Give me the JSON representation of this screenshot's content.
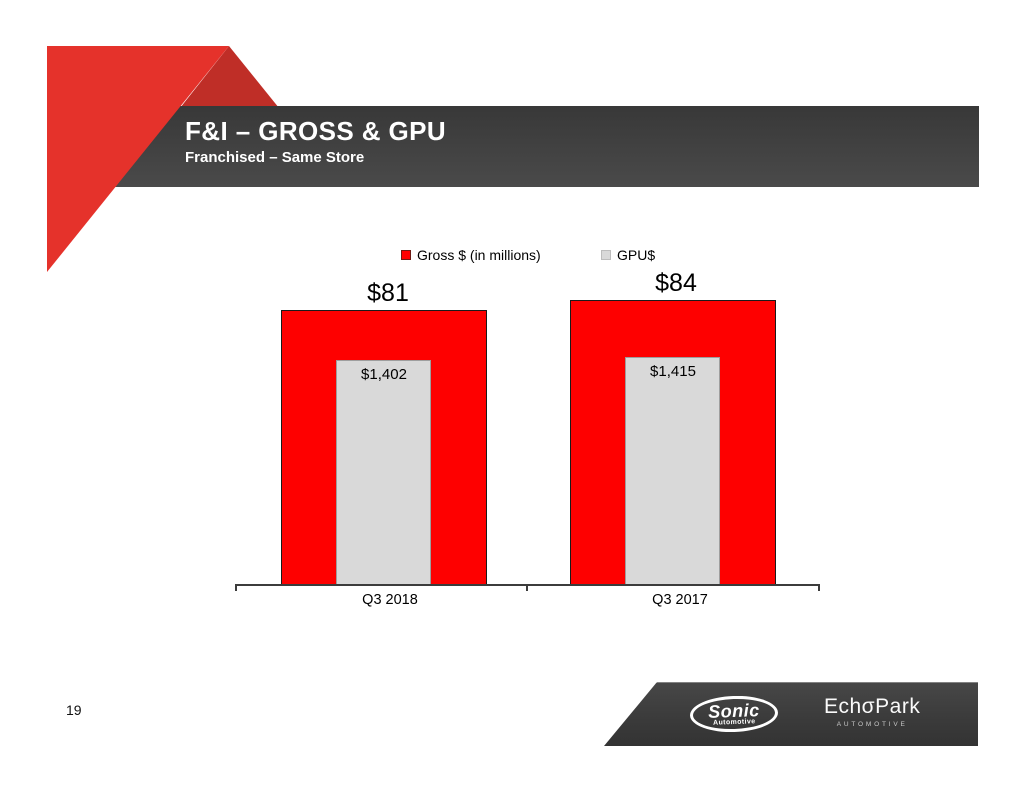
{
  "page_number": "19",
  "header": {
    "title": "F&I – GROSS & GPU",
    "subtitle": "Franchised – Same Store"
  },
  "footer": {
    "sonic": {
      "name": "Sonic",
      "tagline": "Automotive"
    },
    "echopark": {
      "name": "EchσPark",
      "tagline": "AUTOMOTIVE"
    }
  },
  "colors": {
    "accent_red": "#e5322b",
    "accent_red_dark": "#bf2e27",
    "header_band_dark": "#3f3f3f",
    "bar_red": "#fe0000",
    "bar_gray": "#d9d9d9"
  },
  "chart_data": {
    "type": "bar",
    "categories": [
      "Q3 2018",
      "Q3 2017"
    ],
    "series": [
      {
        "name": "Gross $ (in millions)",
        "values": [
          81,
          84
        ],
        "data_labels": [
          "$81",
          "$84"
        ],
        "color": "#fe0000",
        "border_color": "#1a1a1a"
      },
      {
        "name": "GPU$",
        "values": [
          1402,
          1415
        ],
        "data_labels": [
          "$1,402",
          "$1,415"
        ],
        "color": "#d9d9d9",
        "border_color": "#9e9e9e"
      }
    ],
    "legend_position": "top",
    "gridlines": false,
    "y_axis_labels_shown": false,
    "layout_note": "overlapped bars: GPU$ bar drawn inside Gross bar, both baseline-anchored"
  }
}
